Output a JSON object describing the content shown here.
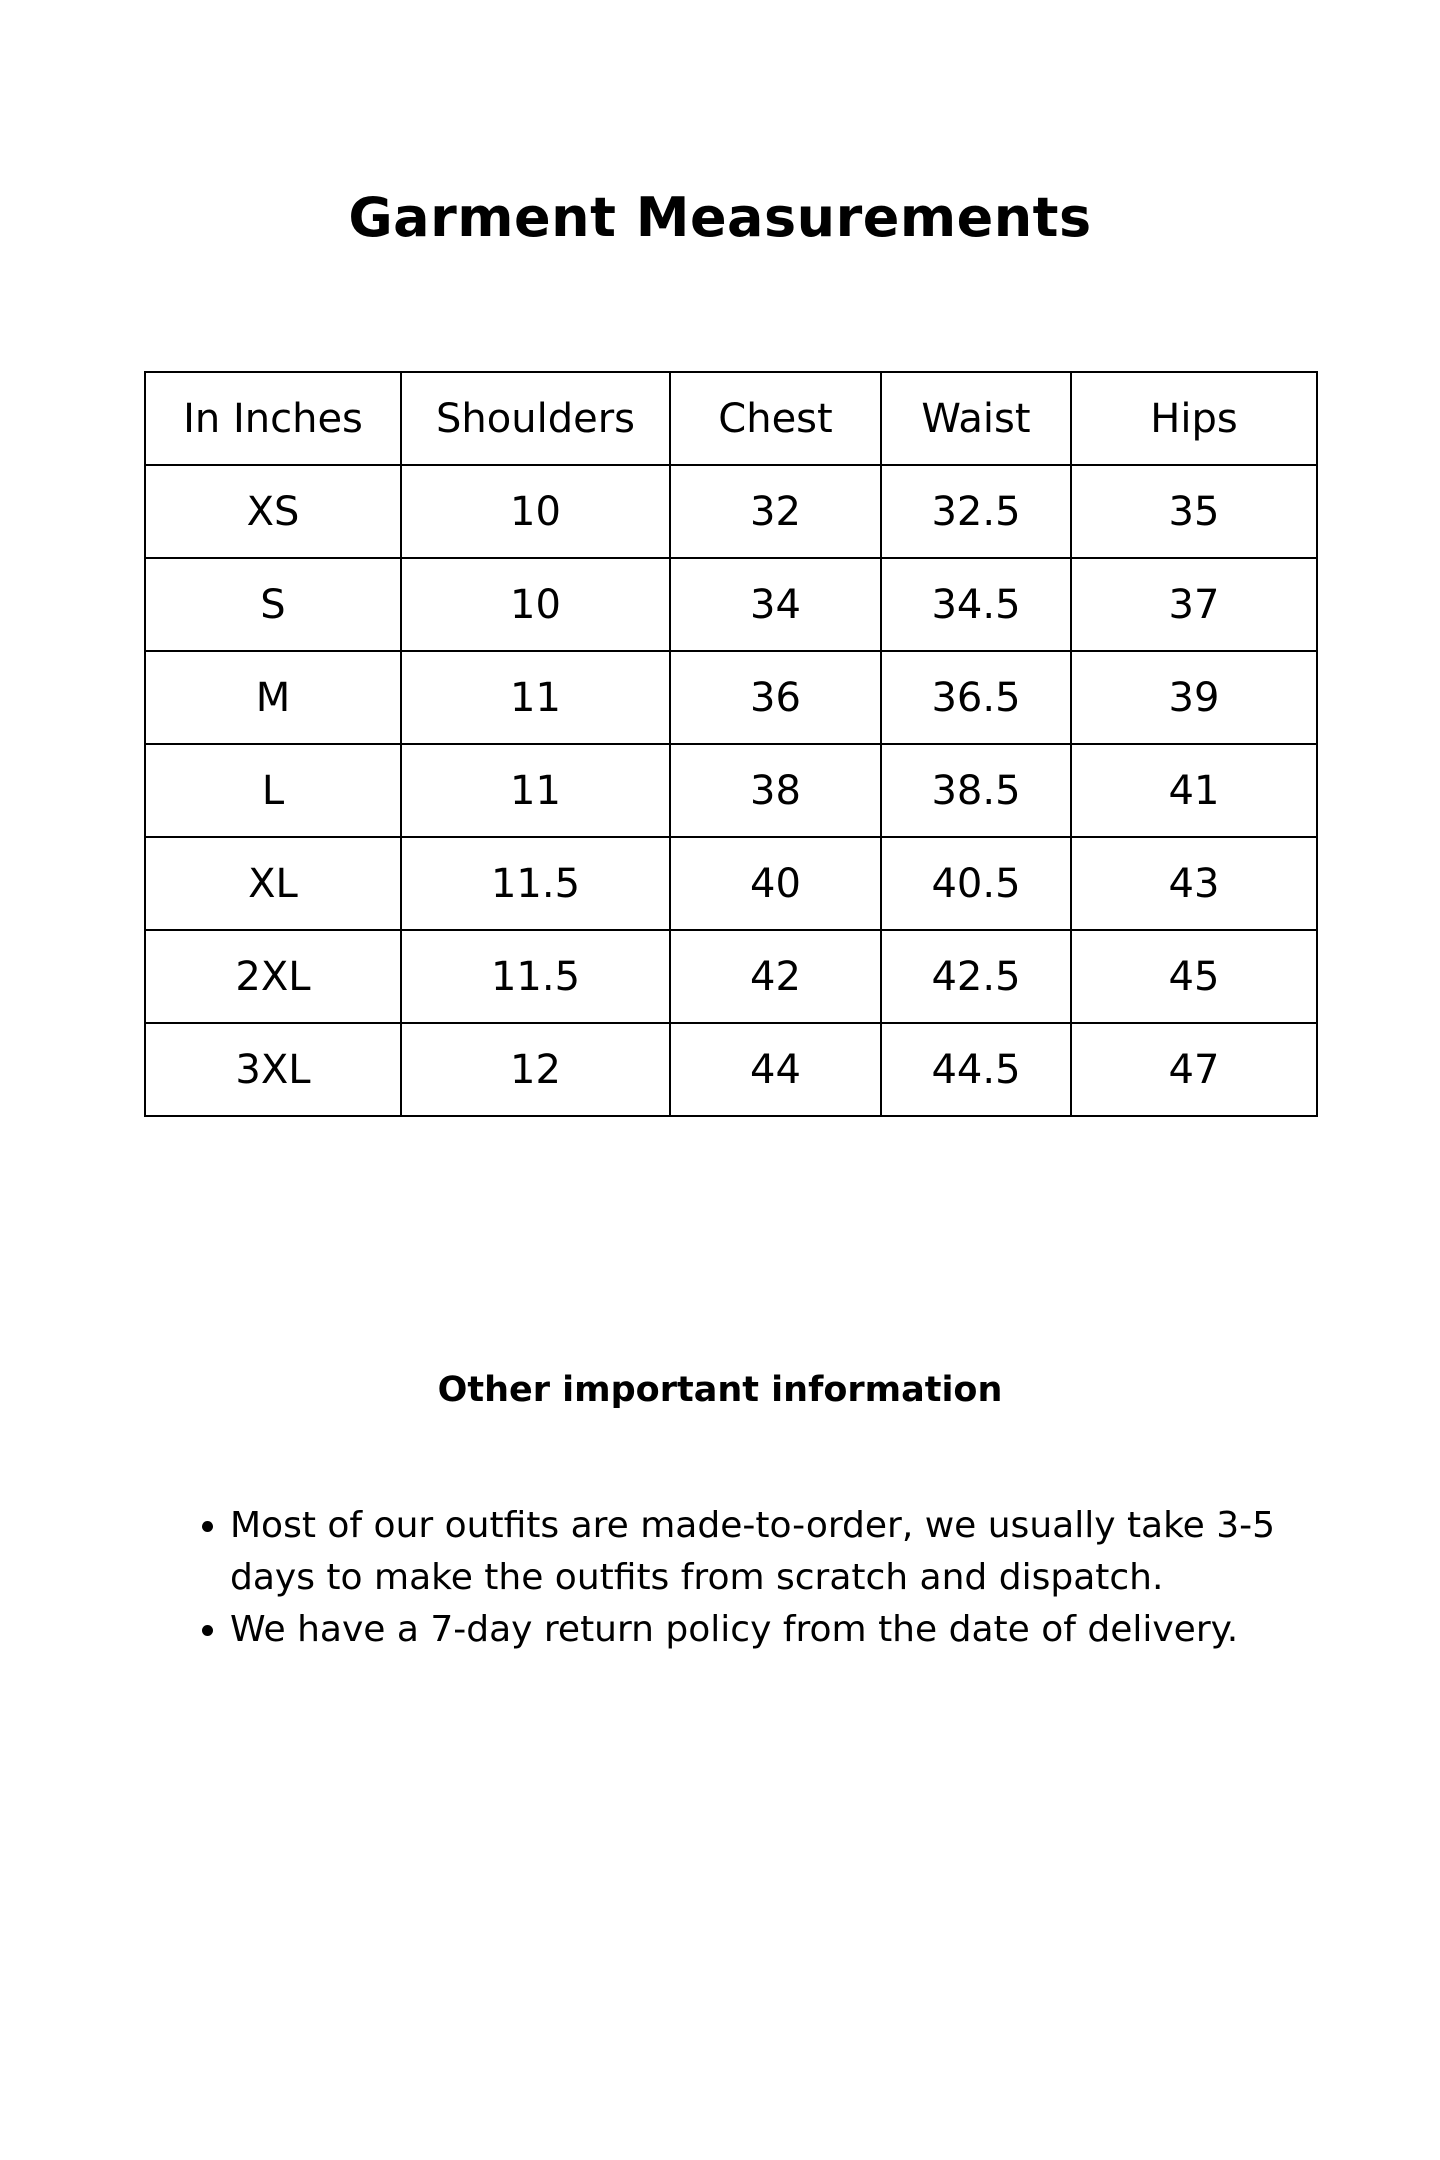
{
  "title": "Garment Measurements",
  "table": {
    "headers": [
      "In Inches",
      "Shoulders",
      "Chest",
      "Waist",
      "Hips"
    ],
    "rows": [
      [
        "XS",
        "10",
        "32",
        "32.5",
        "35"
      ],
      [
        "S",
        "10",
        "34",
        "34.5",
        "37"
      ],
      [
        "M",
        "11",
        "36",
        "36.5",
        "39"
      ],
      [
        "L",
        "11",
        "38",
        "38.5",
        "41"
      ],
      [
        "XL",
        "11.5",
        "40",
        "40.5",
        "43"
      ],
      [
        "2XL",
        "11.5",
        "42",
        "42.5",
        "45"
      ],
      [
        "3XL",
        "12",
        "44",
        "44.5",
        "47"
      ]
    ]
  },
  "info": {
    "heading": "Other important information",
    "bullets": [
      "Most of our outfits are made-to-order, we usually take 3-5 days to make the outfits from scratch and dispatch.",
      " We have a 7-day return policy from the date of delivery."
    ]
  }
}
